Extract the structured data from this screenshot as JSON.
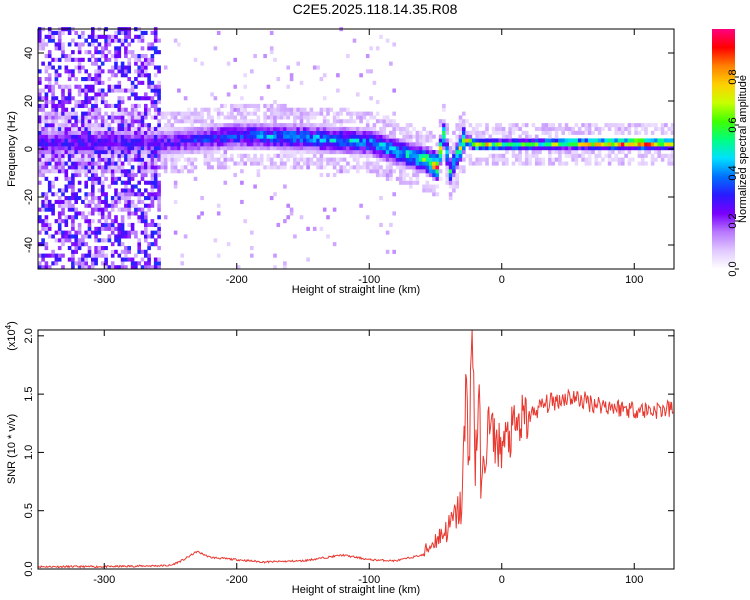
{
  "title": "C2E5.2025.118.14.35.R08",
  "colorbar": {
    "label": "Normalized spectral amplitude",
    "ticks": [
      "0.0",
      "0.2",
      "0.4",
      "0.6",
      "0.8"
    ],
    "tick_values": [
      0.0,
      0.2,
      0.4,
      0.6,
      0.8
    ],
    "range": [
      0,
      1
    ],
    "colors": [
      "#ffffff",
      "#e0c8ff",
      "#b878ff",
      "#7a00ff",
      "#2a1aff",
      "#0070ff",
      "#00e0ff",
      "#00ff80",
      "#40ff00",
      "#c8ff00",
      "#ffd000",
      "#ff8000",
      "#ff0000",
      "#ff0080"
    ]
  },
  "chart_data": [
    {
      "type": "heatmap",
      "xlabel": "Height of straight line (km)",
      "ylabel": "Frequency (Hz)",
      "xlim": [
        -350,
        130
      ],
      "ylim": [
        -50,
        50
      ],
      "xticks": [
        "-300",
        "-200",
        "-100",
        "0",
        "100"
      ],
      "xtick_values": [
        -300,
        -200,
        -100,
        0,
        100
      ],
      "yticks": [
        "-40",
        "-20",
        "0",
        "20",
        "40"
      ],
      "ytick_values": [
        -40,
        -20,
        0,
        20,
        40
      ],
      "ridge": {
        "x": [
          -250,
          -200,
          -150,
          -100,
          -80,
          -60,
          -50,
          -45,
          -40,
          -30,
          -20,
          0,
          50,
          100,
          130
        ],
        "y": [
          2,
          5,
          4,
          2,
          -2,
          -5,
          -8,
          5,
          -10,
          3,
          1,
          1,
          1.5,
          1.5,
          1.5
        ],
        "amplitude": [
          0.3,
          0.4,
          0.45,
          0.45,
          0.5,
          0.6,
          0.9,
          0.6,
          0.5,
          0.7,
          0.85,
          0.6,
          0.7,
          0.95,
          0.8
        ]
      },
      "noise_region_x": [
        -350,
        -260
      ]
    },
    {
      "type": "line",
      "xlabel": "Height of straight line (km)",
      "ylabel": "SNR (10 * v/v)",
      "y_scale_label": "(x10",
      "y_scale_exp": "4",
      "xlim": [
        -350,
        130
      ],
      "ylim": [
        0,
        2.05
      ],
      "xticks": [
        "-300",
        "-200",
        "-100",
        "0",
        "100"
      ],
      "xtick_values": [
        -300,
        -200,
        -100,
        0,
        100
      ],
      "yticks": [
        "0.0",
        "0.5",
        "1.0",
        "1.5",
        "2.0"
      ],
      "ytick_values": [
        0,
        0.5,
        1.0,
        1.5,
        2.0
      ],
      "color": "#e8382f",
      "series": [
        {
          "x": [
            -350,
            -300,
            -250,
            -240,
            -230,
            -220,
            -200,
            -180,
            -150,
            -120,
            -100,
            -80,
            -60,
            -50,
            -40,
            -35,
            -30,
            -27,
            -25,
            -22,
            -20,
            -18,
            -15,
            -12,
            -10,
            -5,
            0,
            10,
            20,
            30,
            50,
            70,
            90,
            110,
            130
          ],
          "y": [
            0.02,
            0.02,
            0.03,
            0.08,
            0.15,
            0.1,
            0.08,
            0.06,
            0.07,
            0.12,
            0.08,
            0.07,
            0.12,
            0.25,
            0.35,
            0.45,
            0.55,
            1.45,
            1.1,
            2.05,
            0.9,
            1.4,
            0.75,
            1.0,
            1.25,
            1.1,
            1.05,
            1.2,
            1.3,
            1.4,
            1.48,
            1.42,
            1.38,
            1.36,
            1.37
          ]
        }
      ]
    }
  ]
}
